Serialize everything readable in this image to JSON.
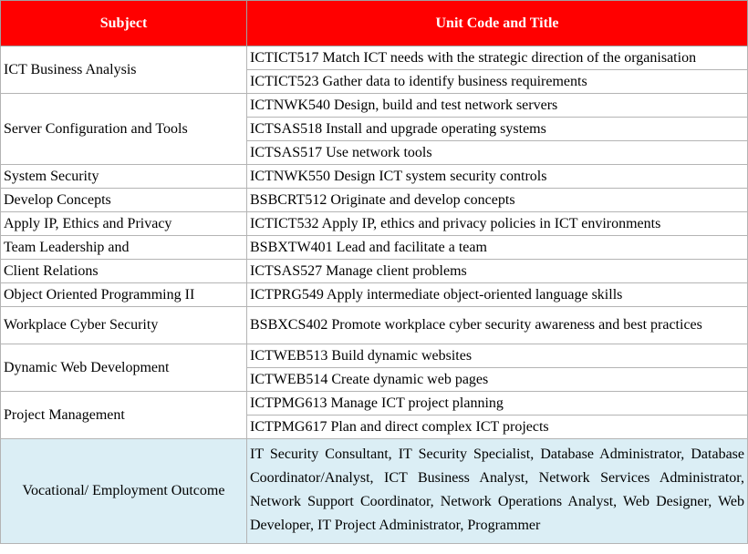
{
  "header": {
    "subject": "Subject",
    "unit": "Unit Code and Title"
  },
  "rows": [
    {
      "subject": "ICT Business Analysis",
      "units": [
        "ICTICT517 Match ICT needs with the strategic direction of the organisation",
        "ICTICT523 Gather data to identify business requirements"
      ]
    },
    {
      "subject": "Server Configuration and Tools",
      "units": [
        "ICTNWK540 Design, build and test network servers",
        "ICTSAS518 Install and upgrade operating systems",
        "ICTSAS517 Use network tools"
      ]
    },
    {
      "subject": "System Security",
      "units": [
        "ICTNWK550 Design ICT system security controls"
      ]
    },
    {
      "subject": "Develop Concepts",
      "units": [
        "BSBCRT512 Originate and develop concepts"
      ]
    },
    {
      "subject": "Apply IP, Ethics and Privacy",
      "units": [
        "ICTICT532 Apply IP, ethics and privacy policies in ICT environments"
      ]
    },
    {
      "subject": "Team Leadership and",
      "units": [
        "BSBXTW401 Lead and facilitate a team"
      ]
    },
    {
      "subject": "Client Relations",
      "units": [
        "ICTSAS527 Manage client problems"
      ]
    },
    {
      "subject": "Object Oriented Programming II",
      "units": [
        "ICTPRG549 Apply intermediate object-oriented language skills"
      ]
    },
    {
      "subject": "Workplace Cyber Security",
      "units": [
        "BSBXCS402 Promote workplace cyber security awareness and best practices"
      ]
    },
    {
      "subject": "Dynamic Web Development",
      "units": [
        "ICTWEB513 Build dynamic websites",
        "ICTWEB514 Create dynamic web pages"
      ]
    },
    {
      "subject": "Project Management",
      "units": [
        "ICTPMG613 Manage ICT project planning",
        "ICTPMG617 Plan and direct complex ICT projects"
      ]
    }
  ],
  "outcome": {
    "subject": "Vocational/ Employment Outcome",
    "text": "IT Security Consultant, IT Security Specialist, Database Administrator, Database Coordinator/Analyst, ICT Business Analyst, Network Services Administrator, Network Support Coordinator, Network Operations Analyst, Web Designer, Web Developer, IT Project Administrator, Programmer"
  },
  "colors": {
    "header_bg": "#ff0000",
    "header_text": "#ffffff",
    "outcome_bg": "#dbeef5"
  }
}
